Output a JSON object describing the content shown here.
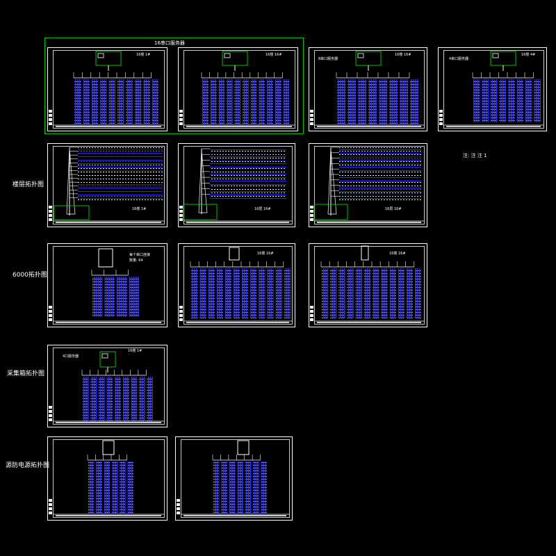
{
  "section_labels": {
    "floor": "楼层拓扑图",
    "g6000": "6000拓扑图",
    "collect": "采集箱拓扑图",
    "lightning": "源防电源拓扑图"
  },
  "group_titles": {
    "port16": "16串口服务器"
  },
  "sheet_labels": {
    "s1": "16楼 1#",
    "s2": "16楼 16#",
    "s3": "16楼 16#",
    "s3_head": "8串口服务器",
    "s4": "16楼 4#",
    "s4_head": "4串口服务器",
    "s6": "16层 16#",
    "s7": "16层 16#",
    "s9_a": "每个串口连接",
    "s9_b": "数量: 64",
    "s10": "16楼 16#",
    "s11": "16楼 16#",
    "s12": "16楼 1#",
    "s12_head": "4口服务器"
  },
  "legend_text": "注: 注 注 1",
  "colors": {
    "background": "#000000",
    "frame": "#ffffff",
    "group_box": "#00c000",
    "device_box": "#00c000",
    "columns": "#2020ff",
    "text": "#ffffff"
  }
}
